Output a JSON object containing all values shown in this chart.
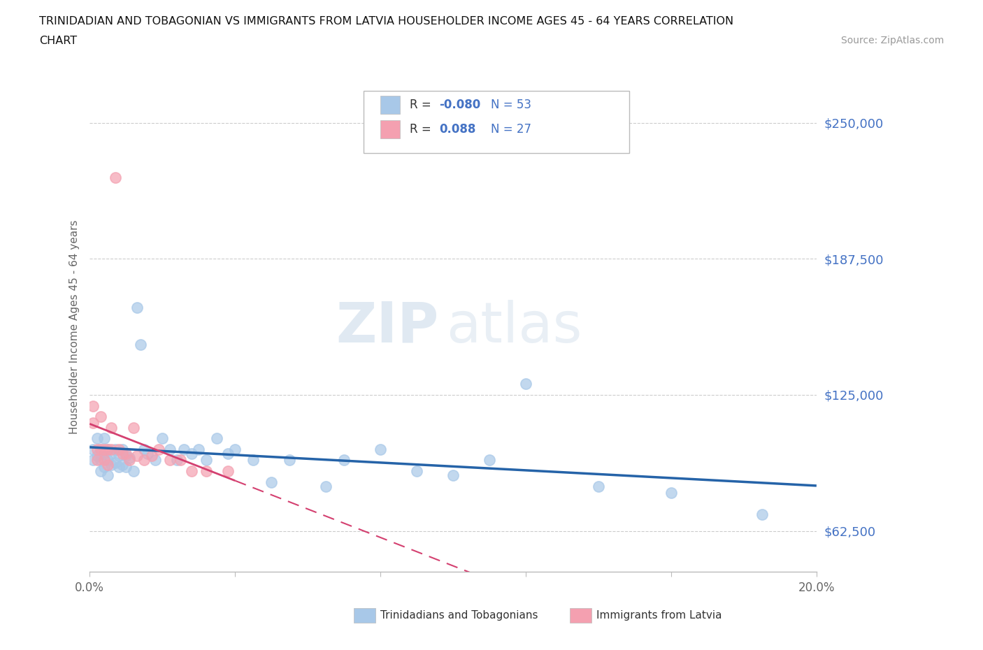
{
  "title_line1": "TRINIDADIAN AND TOBAGONIAN VS IMMIGRANTS FROM LATVIA HOUSEHOLDER INCOME AGES 45 - 64 YEARS CORRELATION",
  "title_line2": "CHART",
  "source_text": "Source: ZipAtlas.com",
  "ylabel": "Householder Income Ages 45 - 64 years",
  "xlim": [
    0.0,
    0.2
  ],
  "ylim": [
    43750,
    268750
  ],
  "yticks": [
    62500,
    125000,
    187500,
    250000
  ],
  "ytick_labels": [
    "$62,500",
    "$125,000",
    "$187,500",
    "$250,000"
  ],
  "xticks": [
    0.0,
    0.04,
    0.08,
    0.12,
    0.16,
    0.2
  ],
  "xtick_labels": [
    "0.0%",
    "",
    "",
    "",
    "",
    "20.0%"
  ],
  "blue_color": "#a8c8e8",
  "pink_color": "#f4a0b0",
  "trend_blue_color": "#2563a8",
  "trend_pink_color": "#d44070",
  "watermark_zip": "ZIP",
  "watermark_atlas": "atlas",
  "blue_scatter_x": [
    0.001,
    0.001,
    0.002,
    0.002,
    0.003,
    0.003,
    0.003,
    0.004,
    0.004,
    0.004,
    0.005,
    0.005,
    0.005,
    0.006,
    0.006,
    0.007,
    0.007,
    0.008,
    0.008,
    0.009,
    0.009,
    0.01,
    0.01,
    0.011,
    0.012,
    0.013,
    0.014,
    0.015,
    0.016,
    0.018,
    0.02,
    0.022,
    0.024,
    0.026,
    0.028,
    0.03,
    0.032,
    0.035,
    0.038,
    0.04,
    0.045,
    0.05,
    0.055,
    0.065,
    0.07,
    0.08,
    0.09,
    0.1,
    0.11,
    0.12,
    0.14,
    0.16,
    0.185
  ],
  "blue_scatter_y": [
    100000,
    95000,
    105000,
    97000,
    100000,
    95000,
    90000,
    105000,
    98000,
    92000,
    100000,
    95000,
    88000,
    98000,
    93000,
    100000,
    94000,
    97000,
    92000,
    100000,
    93000,
    97000,
    92000,
    96000,
    90000,
    165000,
    148000,
    100000,
    98000,
    95000,
    105000,
    100000,
    95000,
    100000,
    98000,
    100000,
    95000,
    105000,
    98000,
    100000,
    95000,
    85000,
    95000,
    83000,
    95000,
    100000,
    90000,
    88000,
    95000,
    130000,
    83000,
    80000,
    70000
  ],
  "pink_scatter_x": [
    0.001,
    0.001,
    0.002,
    0.002,
    0.003,
    0.003,
    0.004,
    0.004,
    0.005,
    0.005,
    0.006,
    0.006,
    0.007,
    0.008,
    0.009,
    0.01,
    0.011,
    0.012,
    0.013,
    0.015,
    0.017,
    0.019,
    0.022,
    0.025,
    0.028,
    0.032,
    0.038
  ],
  "pink_scatter_y": [
    120000,
    112000,
    100000,
    95000,
    115000,
    100000,
    100000,
    95000,
    100000,
    93000,
    110000,
    100000,
    225000,
    100000,
    98000,
    98000,
    95000,
    110000,
    97000,
    95000,
    97000,
    100000,
    95000,
    95000,
    90000,
    90000,
    90000
  ],
  "background_color": "#ffffff",
  "grid_color": "#cccccc"
}
